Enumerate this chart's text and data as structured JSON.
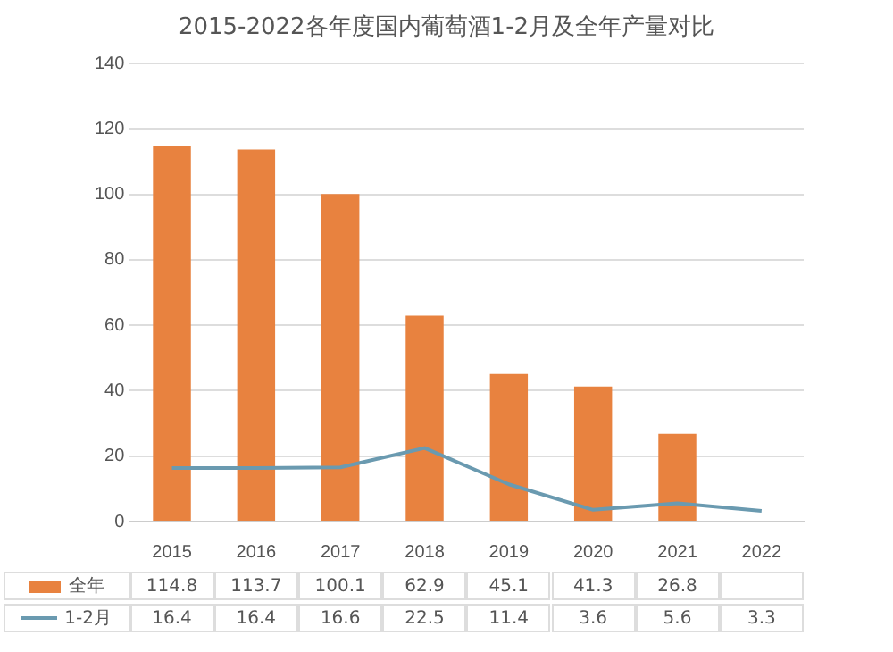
{
  "chart_data": {
    "type": "bar",
    "title": "2015-2022各年度国内葡萄酒1-2月及全年产量对比",
    "categories": [
      "2015",
      "2016",
      "2017",
      "2018",
      "2019",
      "2020",
      "2021",
      "2022"
    ],
    "series": [
      {
        "name": "全年",
        "color": "#e8823f",
        "values": [
          114.8,
          113.7,
          100.1,
          62.9,
          45.1,
          41.3,
          26.8,
          null
        ]
      },
      {
        "name": "1-2月",
        "type": "line",
        "color": "#6a9ab0",
        "values": [
          16.4,
          16.4,
          16.6,
          22.5,
          11.4,
          3.6,
          5.6,
          3.3
        ]
      }
    ],
    "ylim": [
      0,
      140
    ],
    "yticks": [
      0,
      20,
      40,
      60,
      80,
      100,
      120,
      140
    ],
    "grid": "y",
    "legend": "bottom",
    "marker": "none",
    "data_labels": true
  }
}
